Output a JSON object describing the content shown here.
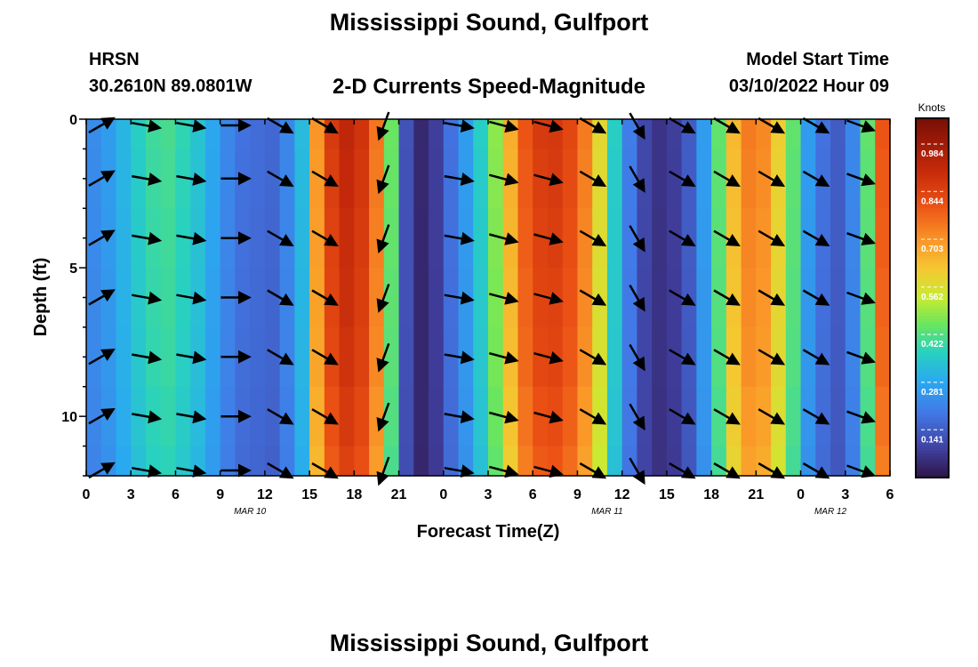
{
  "header": {
    "title": "Mississippi Sound, Gulfport",
    "station": "HRSN",
    "coords": "30.2610N  89.0801W",
    "subtitle": "2-D Currents Speed-Magnitude",
    "start_label": "Model Start Time",
    "start_value": "03/10/2022 Hour 09",
    "footer_title": "Mississippi Sound, Gulfport"
  },
  "chart_data": {
    "type": "heatmap",
    "title": "2-D Currents Speed-Magnitude",
    "xlabel": "Forecast Time(Z)",
    "ylabel": "Depth (ft)",
    "x_ticks": [
      "0",
      "3",
      "6",
      "9",
      "12",
      "15",
      "18",
      "21",
      "0",
      "3",
      "6",
      "9",
      "12",
      "15",
      "18",
      "21",
      "0",
      "3",
      "6"
    ],
    "x_range_hours": [
      0,
      54
    ],
    "date_labels": [
      {
        "label": "MAR 10",
        "hour": 11
      },
      {
        "label": "MAR 11",
        "hour": 35
      },
      {
        "label": "MAR 12",
        "hour": 50
      }
    ],
    "y_ticks": [
      0,
      5,
      10
    ],
    "y_range": [
      0,
      12
    ],
    "y_inverted": true,
    "colorbar": {
      "label": "Knots",
      "range": [
        0.0,
        1.06
      ],
      "ticks": [
        "0.984",
        "0.844",
        "0.703",
        "0.562",
        "0.422",
        "0.281",
        "0.141"
      ]
    },
    "hours": [
      0,
      1,
      2,
      3,
      4,
      5,
      6,
      7,
      8,
      9,
      10,
      11,
      12,
      13,
      14,
      15,
      16,
      17,
      18,
      19,
      20,
      21,
      22,
      23,
      24,
      25,
      26,
      27,
      28,
      29,
      30,
      31,
      32,
      33,
      34,
      35,
      36,
      37,
      38,
      39,
      40,
      41,
      42,
      43,
      44,
      45,
      46,
      47,
      48,
      49,
      50,
      51,
      52,
      53
    ],
    "speed_knots": [
      0.23,
      0.26,
      0.31,
      0.36,
      0.4,
      0.41,
      0.38,
      0.34,
      0.28,
      0.22,
      0.18,
      0.17,
      0.16,
      0.22,
      0.32,
      0.7,
      0.86,
      0.92,
      0.88,
      0.75,
      0.45,
      0.12,
      0.04,
      0.08,
      0.18,
      0.26,
      0.36,
      0.48,
      0.66,
      0.8,
      0.86,
      0.87,
      0.83,
      0.74,
      0.58,
      0.36,
      0.2,
      0.1,
      0.06,
      0.08,
      0.14,
      0.26,
      0.44,
      0.64,
      0.74,
      0.72,
      0.6,
      0.44,
      0.26,
      0.18,
      0.14,
      0.22,
      0.44,
      0.8
    ],
    "depths_ft": [
      0,
      2,
      4,
      6,
      8,
      10,
      12
    ],
    "depth_factor": [
      1.0,
      0.99,
      0.98,
      0.97,
      0.96,
      0.94,
      0.92
    ],
    "vector_hours": [
      1,
      4,
      7,
      10,
      13,
      16,
      20,
      25,
      28,
      31,
      34,
      37,
      40,
      43,
      46,
      49,
      52
    ],
    "vector_dir_deg": [
      -30,
      10,
      10,
      0,
      30,
      30,
      110,
      10,
      15,
      15,
      30,
      60,
      30,
      30,
      30,
      30,
      20
    ]
  }
}
